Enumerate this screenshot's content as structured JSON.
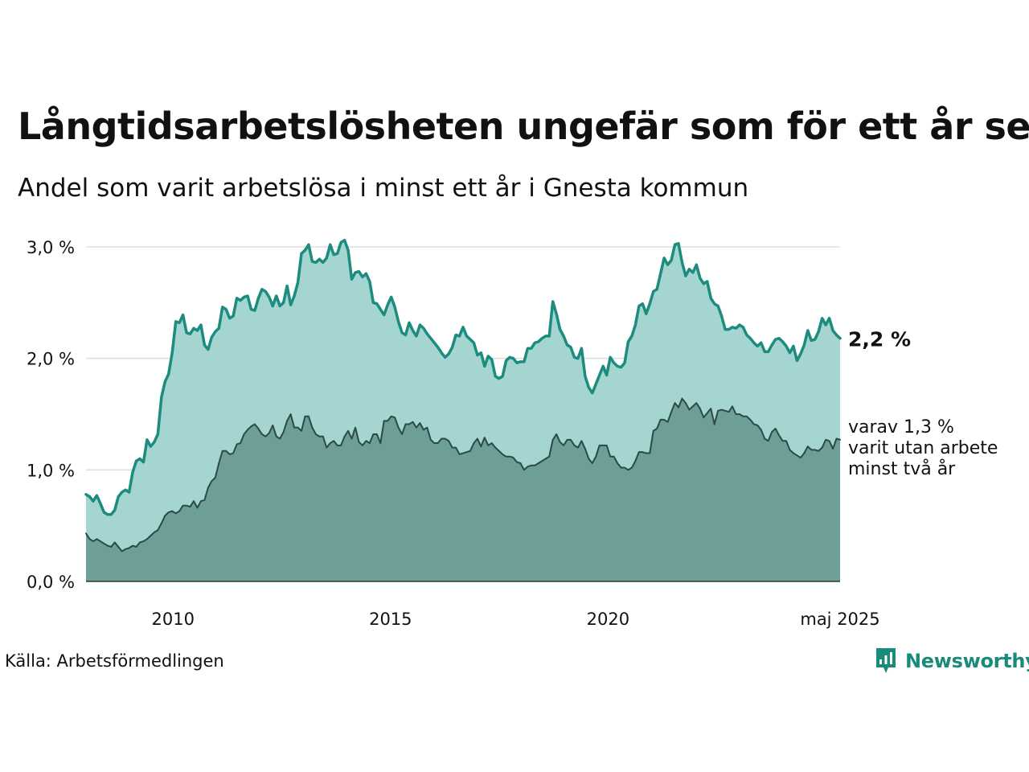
{
  "title": "Långtidsarbetslösheten ungefär som för ett år sen",
  "subtitle": "Andel som varit arbetslösa i minst ett år i Gnesta kommun",
  "source": "Källa: Arbetsförmedlingen",
  "brand": "Newsworthy",
  "colors": {
    "main_line": "#1b8c7e",
    "main_fill": "#a4d5d0",
    "sub_line": "#2c4a45",
    "sub_fill": "#6e9e98",
    "grid": "#dddddd",
    "brand": "#1a8a7a"
  },
  "chart_data": {
    "type": "area",
    "x_ticks": [
      "2010",
      "2015",
      "2020",
      "maj 2025"
    ],
    "y_ticks": [
      "0,0 %",
      "1,0 %",
      "2,0 %",
      "3,0 %"
    ],
    "ylim": [
      0,
      3.0
    ],
    "xlim": [
      "2008-01",
      "2025-05"
    ],
    "grid": true,
    "x_start": "2008-01",
    "x_end": "2025-05",
    "series": [
      {
        "key": "minst_ett_ar",
        "end_label": "2,2 %",
        "values": [
          0.78,
          0.76,
          0.72,
          0.77,
          0.7,
          0.62,
          0.6,
          0.6,
          0.64,
          0.76,
          0.8,
          0.82,
          0.8,
          0.98,
          1.08,
          1.1,
          1.07,
          1.27,
          1.21,
          1.25,
          1.32,
          1.65,
          1.79,
          1.86,
          2.05,
          2.33,
          2.32,
          2.39,
          2.23,
          2.22,
          2.27,
          2.25,
          2.3,
          2.12,
          2.08,
          2.19,
          2.24,
          2.27,
          2.46,
          2.44,
          2.36,
          2.38,
          2.54,
          2.52,
          2.55,
          2.56,
          2.44,
          2.43,
          2.54,
          2.62,
          2.6,
          2.55,
          2.47,
          2.56,
          2.47,
          2.5,
          2.65,
          2.48,
          2.56,
          2.68,
          2.94,
          2.97,
          3.02,
          2.87,
          2.86,
          2.89,
          2.86,
          2.9,
          3.02,
          2.93,
          2.94,
          3.04,
          3.06,
          2.97,
          2.71,
          2.77,
          2.78,
          2.73,
          2.76,
          2.69,
          2.5,
          2.49,
          2.44,
          2.39,
          2.48,
          2.55,
          2.46,
          2.33,
          2.23,
          2.21,
          2.32,
          2.25,
          2.2,
          2.3,
          2.27,
          2.22,
          2.18,
          2.14,
          2.1,
          2.05,
          2.01,
          2.04,
          2.1,
          2.21,
          2.2,
          2.28,
          2.2,
          2.17,
          2.14,
          2.03,
          2.05,
          1.93,
          2.02,
          1.99,
          1.84,
          1.82,
          1.84,
          1.98,
          2.01,
          2.0,
          1.96,
          1.97,
          1.97,
          2.09,
          2.09,
          2.14,
          2.15,
          2.18,
          2.2,
          2.2,
          2.51,
          2.4,
          2.26,
          2.2,
          2.12,
          2.1,
          2.01,
          2.0,
          2.09,
          1.84,
          1.74,
          1.69,
          1.77,
          1.85,
          1.93,
          1.85,
          2.01,
          1.96,
          1.93,
          1.92,
          1.96,
          2.15,
          2.2,
          2.3,
          2.47,
          2.49,
          2.4,
          2.49,
          2.6,
          2.62,
          2.76,
          2.9,
          2.84,
          2.88,
          3.02,
          3.03,
          2.86,
          2.74,
          2.8,
          2.77,
          2.84,
          2.72,
          2.67,
          2.69,
          2.54,
          2.49,
          2.47,
          2.38,
          2.26,
          2.26,
          2.28,
          2.27,
          2.3,
          2.28,
          2.21,
          2.18,
          2.14,
          2.11,
          2.14,
          2.06,
          2.06,
          2.12,
          2.17,
          2.18,
          2.15,
          2.11,
          2.05,
          2.11,
          1.98,
          2.04,
          2.12,
          2.25,
          2.16,
          2.17,
          2.24,
          2.36,
          2.3,
          2.36,
          2.25,
          2.21,
          2.18
        ]
      },
      {
        "key": "minst_tva_ar",
        "end_label": [
          "varav 1,3 %",
          "varit utan arbete",
          "minst två år"
        ],
        "values": [
          0.43,
          0.38,
          0.36,
          0.38,
          0.36,
          0.34,
          0.32,
          0.31,
          0.35,
          0.31,
          0.27,
          0.29,
          0.3,
          0.32,
          0.31,
          0.35,
          0.36,
          0.38,
          0.41,
          0.44,
          0.46,
          0.52,
          0.59,
          0.62,
          0.63,
          0.61,
          0.63,
          0.68,
          0.68,
          0.67,
          0.72,
          0.66,
          0.72,
          0.73,
          0.84,
          0.9,
          0.93,
          1.06,
          1.17,
          1.17,
          1.14,
          1.15,
          1.23,
          1.24,
          1.32,
          1.36,
          1.39,
          1.41,
          1.37,
          1.32,
          1.3,
          1.33,
          1.4,
          1.3,
          1.28,
          1.34,
          1.44,
          1.5,
          1.38,
          1.38,
          1.35,
          1.48,
          1.48,
          1.38,
          1.32,
          1.3,
          1.3,
          1.2,
          1.24,
          1.26,
          1.22,
          1.22,
          1.3,
          1.35,
          1.28,
          1.38,
          1.25,
          1.22,
          1.26,
          1.24,
          1.32,
          1.32,
          1.24,
          1.44,
          1.44,
          1.48,
          1.47,
          1.38,
          1.32,
          1.41,
          1.41,
          1.43,
          1.38,
          1.42,
          1.36,
          1.38,
          1.27,
          1.24,
          1.24,
          1.28,
          1.28,
          1.26,
          1.2,
          1.2,
          1.14,
          1.15,
          1.16,
          1.17,
          1.24,
          1.28,
          1.21,
          1.29,
          1.22,
          1.24,
          1.2,
          1.17,
          1.14,
          1.12,
          1.12,
          1.11,
          1.07,
          1.06,
          1.0,
          1.03,
          1.04,
          1.04,
          1.06,
          1.08,
          1.1,
          1.12,
          1.27,
          1.32,
          1.25,
          1.22,
          1.27,
          1.27,
          1.22,
          1.2,
          1.26,
          1.19,
          1.1,
          1.06,
          1.12,
          1.22,
          1.22,
          1.22,
          1.12,
          1.12,
          1.06,
          1.02,
          1.02,
          1.0,
          1.02,
          1.08,
          1.16,
          1.16,
          1.15,
          1.15,
          1.35,
          1.37,
          1.45,
          1.45,
          1.43,
          1.52,
          1.6,
          1.56,
          1.64,
          1.6,
          1.54,
          1.57,
          1.6,
          1.55,
          1.47,
          1.51,
          1.55,
          1.41,
          1.53,
          1.54,
          1.53,
          1.52,
          1.57,
          1.5,
          1.5,
          1.48,
          1.48,
          1.45,
          1.41,
          1.4,
          1.36,
          1.28,
          1.26,
          1.34,
          1.37,
          1.31,
          1.26,
          1.26,
          1.18,
          1.15,
          1.13,
          1.11,
          1.15,
          1.21,
          1.18,
          1.18,
          1.17,
          1.2,
          1.27,
          1.26,
          1.19,
          1.28,
          1.27
        ]
      }
    ]
  }
}
